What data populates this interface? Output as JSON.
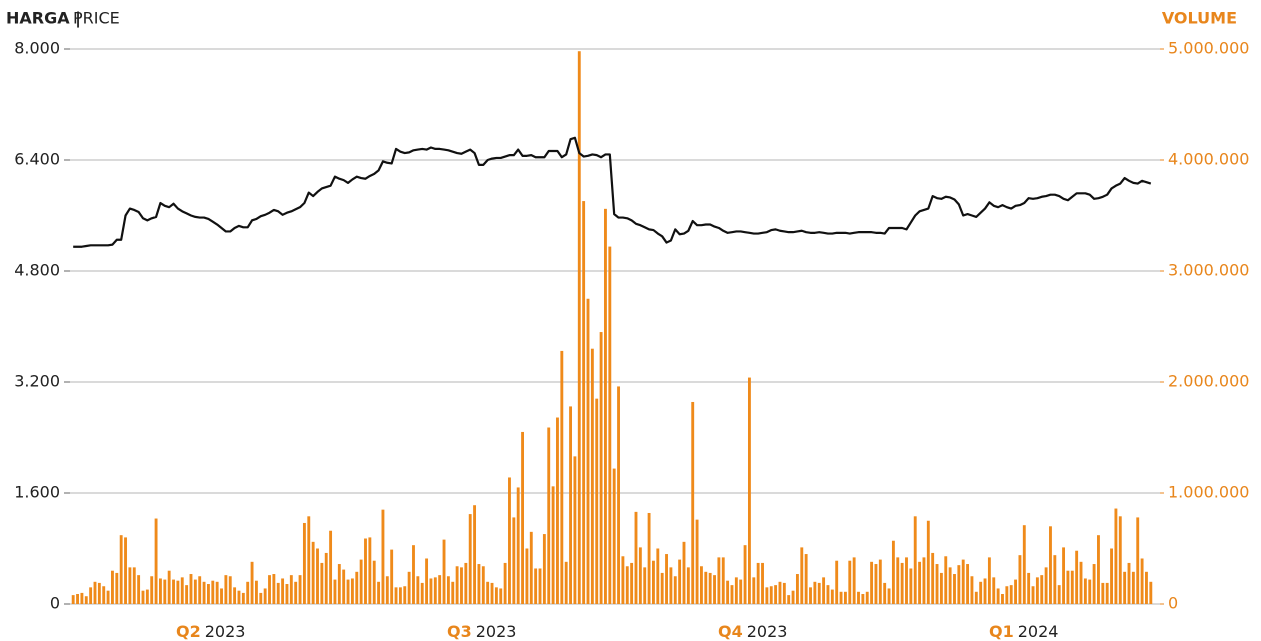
{
  "chart_data": {
    "type": "bar-line",
    "y_label_bold": "HARGA |",
    "y_label": "PRICE",
    "y2_label": "VOLUME",
    "quarters": [
      {
        "q": "Q2",
        "year": "2023"
      },
      {
        "q": "Q3",
        "year": "2023"
      },
      {
        "q": "Q4",
        "year": "2023"
      },
      {
        "q": "Q1",
        "year": "2024"
      }
    ],
    "ylim": [
      0,
      8000
    ],
    "yticks": [
      0,
      {
        "value": 1600,
        "label": "1.600"
      },
      {
        "value": 3200,
        "label": "3.200"
      },
      {
        "value": 4800,
        "label": "4.800"
      },
      {
        "value": 6400,
        "label": "6.400"
      },
      {
        "value": 8000,
        "label": "8.000"
      }
    ],
    "y2lim": [
      0,
      5000000
    ],
    "y2ticks": [
      0,
      {
        "value": 1000000,
        "label": "1.000.000"
      },
      {
        "value": 2000000,
        "label": "2.000.000"
      },
      {
        "value": 3000000,
        "label": "3.000.000"
      },
      {
        "value": 4000000,
        "label": "4.000.000"
      },
      {
        "value": 5000000,
        "label": "5.000.000"
      }
    ],
    "grid": true,
    "series": [
      {
        "name": "PRICE",
        "type": "line",
        "color": "#111111",
        "values": [
          5150,
          5150,
          5150,
          5160,
          5170,
          5170,
          5170,
          5170,
          5170,
          5180,
          5250,
          5250,
          5600,
          5700,
          5680,
          5650,
          5560,
          5530,
          5560,
          5580,
          5780,
          5740,
          5720,
          5770,
          5700,
          5660,
          5630,
          5600,
          5580,
          5570,
          5570,
          5550,
          5510,
          5470,
          5420,
          5370,
          5370,
          5420,
          5450,
          5430,
          5430,
          5530,
          5550,
          5590,
          5610,
          5640,
          5680,
          5660,
          5610,
          5640,
          5660,
          5690,
          5720,
          5780,
          5930,
          5880,
          5940,
          5990,
          6010,
          6030,
          6160,
          6130,
          6110,
          6070,
          6120,
          6160,
          6140,
          6130,
          6170,
          6200,
          6250,
          6380,
          6360,
          6350,
          6560,
          6520,
          6500,
          6510,
          6540,
          6550,
          6560,
          6550,
          6580,
          6560,
          6560,
          6550,
          6540,
          6520,
          6500,
          6490,
          6520,
          6550,
          6500,
          6330,
          6330,
          6400,
          6420,
          6430,
          6430,
          6450,
          6470,
          6470,
          6550,
          6460,
          6460,
          6470,
          6440,
          6440,
          6440,
          6530,
          6530,
          6530,
          6440,
          6480,
          6700,
          6720,
          6500,
          6450,
          6460,
          6480,
          6470,
          6440,
          6480,
          6480,
          5620,
          5570,
          5570,
          5560,
          5530,
          5480,
          5460,
          5430,
          5400,
          5390,
          5340,
          5300,
          5210,
          5240,
          5400,
          5330,
          5340,
          5380,
          5520,
          5460,
          5460,
          5470,
          5470,
          5440,
          5420,
          5380,
          5350,
          5360,
          5370,
          5370,
          5360,
          5350,
          5340,
          5340,
          5350,
          5360,
          5390,
          5400,
          5380,
          5370,
          5360,
          5360,
          5370,
          5380,
          5360,
          5350,
          5350,
          5360,
          5350,
          5340,
          5340,
          5350,
          5350,
          5350,
          5340,
          5350,
          5360,
          5360,
          5360,
          5360,
          5350,
          5350,
          5340,
          5420,
          5420,
          5420,
          5420,
          5400,
          5500,
          5600,
          5660,
          5680,
          5700,
          5880,
          5850,
          5840,
          5870,
          5860,
          5830,
          5760,
          5600,
          5620,
          5600,
          5580,
          5640,
          5700,
          5790,
          5740,
          5720,
          5750,
          5720,
          5700,
          5740,
          5750,
          5780,
          5850,
          5840,
          5850,
          5870,
          5880,
          5900,
          5900,
          5880,
          5840,
          5820,
          5870,
          5920,
          5920,
          5920,
          5900,
          5840,
          5850,
          5870,
          5900,
          5990,
          6030,
          6060,
          6140,
          6100,
          6070,
          6060,
          6100,
          6080,
          6060
        ]
      },
      {
        "name": "VOLUME",
        "type": "bar",
        "axis": "y2",
        "color": "#ef8a1a",
        "values": [
          80000,
          90000,
          100000,
          70000,
          150000,
          200000,
          190000,
          160000,
          120000,
          300000,
          280000,
          620000,
          600000,
          330000,
          330000,
          260000,
          120000,
          130000,
          250000,
          770000,
          230000,
          220000,
          300000,
          220000,
          210000,
          240000,
          170000,
          270000,
          220000,
          250000,
          200000,
          180000,
          210000,
          200000,
          140000,
          260000,
          250000,
          150000,
          120000,
          100000,
          200000,
          380000,
          210000,
          100000,
          140000,
          260000,
          270000,
          190000,
          230000,
          180000,
          260000,
          200000,
          260000,
          730000,
          790000,
          560000,
          500000,
          370000,
          460000,
          660000,
          220000,
          360000,
          310000,
          220000,
          230000,
          290000,
          400000,
          590000,
          600000,
          390000,
          200000,
          850000,
          250000,
          490000,
          150000,
          150000,
          160000,
          290000,
          530000,
          250000,
          190000,
          410000,
          230000,
          240000,
          260000,
          580000,
          250000,
          200000,
          340000,
          330000,
          370000,
          810000,
          890000,
          360000,
          340000,
          200000,
          190000,
          150000,
          140000,
          370000,
          1140000,
          780000,
          1050000,
          1550000,
          500000,
          650000,
          320000,
          320000,
          630000,
          1590000,
          1060000,
          1680000,
          2280000,
          380000,
          1780000,
          1330000,
          4980000,
          3630000,
          2750000,
          2300000,
          1850000,
          2450000,
          3560000,
          3220000,
          1220000,
          1960000,
          430000,
          340000,
          370000,
          830000,
          510000,
          330000,
          820000,
          390000,
          500000,
          280000,
          450000,
          330000,
          250000,
          400000,
          560000,
          330000,
          1820000,
          760000,
          340000,
          290000,
          280000,
          260000,
          420000,
          420000,
          210000,
          170000,
          240000,
          220000,
          530000,
          2040000,
          240000,
          370000,
          370000,
          150000,
          160000,
          170000,
          200000,
          190000,
          80000,
          120000,
          270000,
          510000,
          450000,
          150000,
          200000,
          190000,
          240000,
          170000,
          130000,
          390000,
          110000,
          110000,
          390000,
          420000,
          110000,
          90000,
          110000,
          380000,
          360000,
          400000,
          190000,
          140000,
          570000,
          420000,
          370000,
          420000,
          320000,
          790000,
          380000,
          420000,
          750000,
          460000,
          360000,
          280000,
          430000,
          330000,
          270000,
          350000,
          400000,
          360000,
          250000,
          110000,
          200000,
          230000,
          420000,
          240000,
          140000,
          90000,
          160000,
          170000,
          220000,
          440000,
          710000,
          280000,
          160000,
          240000,
          260000,
          330000,
          700000,
          440000,
          170000,
          510000,
          300000,
          300000,
          480000,
          380000,
          230000,
          220000,
          360000,
          620000,
          190000,
          190000,
          500000,
          860000,
          790000,
          290000,
          370000,
          290000,
          780000,
          410000,
          290000,
          200000
        ]
      }
    ]
  }
}
